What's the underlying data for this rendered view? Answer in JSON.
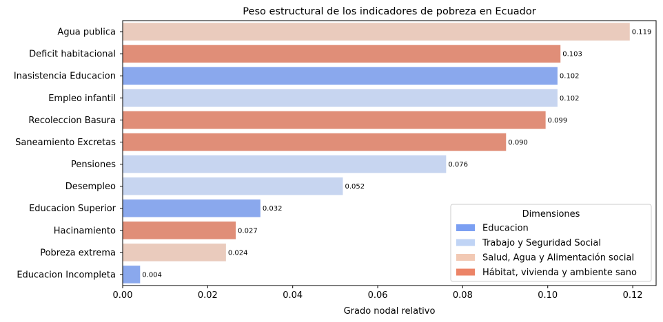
{
  "chart_data": {
    "type": "bar",
    "orientation": "horizontal",
    "title": "Peso estructural de los indicadores de pobreza en Ecuador",
    "xlabel": "Grado nodal relativo",
    "ylabel": "",
    "xlim": [
      0,
      0.1255
    ],
    "xticks": [
      0.0,
      0.02,
      0.04,
      0.06,
      0.08,
      0.1,
      0.12
    ],
    "xtick_labels": [
      "0.00",
      "0.02",
      "0.04",
      "0.06",
      "0.08",
      "0.10",
      "0.12"
    ],
    "grid": false,
    "legend": {
      "title": "Dimensiones",
      "placement": "lower-right",
      "entries": [
        {
          "name": "Educacion",
          "color": "#7b9ff2"
        },
        {
          "name": "Trabajo y Seguridad Social",
          "color": "#c0d4f5"
        },
        {
          "name": "Salud, Agua y Alimentación social",
          "color": "#f2c9b4"
        },
        {
          "name": "Hábitat, vivienda y ambiente sano",
          "color": "#ec8467"
        }
      ]
    },
    "bars": [
      {
        "label": "Agua publica",
        "value": 0.1193,
        "value_label": "0.119",
        "dimension": "Salud, Agua y Alimentación social",
        "color": "#eacbbd"
      },
      {
        "label": "Deficit habitacional",
        "value": 0.103,
        "value_label": "0.103",
        "dimension": "Hábitat, vivienda y ambiente sano",
        "color": "#e08e78"
      },
      {
        "label": "Inasistencia Educacion",
        "value": 0.1023,
        "value_label": "0.102",
        "dimension": "Educacion",
        "color": "#8aa8ed"
      },
      {
        "label": "Empleo infantil",
        "value": 0.1023,
        "value_label": "0.102",
        "dimension": "Trabajo y Seguridad Social",
        "color": "#c7d5f0"
      },
      {
        "label": "Recoleccion Basura",
        "value": 0.0995,
        "value_label": "0.099",
        "dimension": "Hábitat, vivienda y ambiente sano",
        "color": "#e08e78"
      },
      {
        "label": "Saneamiento Excretas",
        "value": 0.0902,
        "value_label": "0.090",
        "dimension": "Hábitat, vivienda y ambiente sano",
        "color": "#e08e78"
      },
      {
        "label": "Pensiones",
        "value": 0.0761,
        "value_label": "0.076",
        "dimension": "Trabajo y Seguridad Social",
        "color": "#c7d5f0"
      },
      {
        "label": "Desempleo",
        "value": 0.0518,
        "value_label": "0.052",
        "dimension": "Trabajo y Seguridad Social",
        "color": "#c7d5f0"
      },
      {
        "label": "Educacion Superior",
        "value": 0.0324,
        "value_label": "0.032",
        "dimension": "Educacion",
        "color": "#8aa8ed"
      },
      {
        "label": "Hacinamiento",
        "value": 0.0266,
        "value_label": "0.027",
        "dimension": "Hábitat, vivienda y ambiente sano",
        "color": "#e08e78"
      },
      {
        "label": "Pobreza extrema",
        "value": 0.0243,
        "value_label": "0.024",
        "dimension": "Salud, Agua y Alimentación social",
        "color": "#eacbbd"
      },
      {
        "label": "Educacion Incompleta",
        "value": 0.0041,
        "value_label": "0.004",
        "dimension": "Educacion",
        "color": "#8aa8ed"
      }
    ]
  }
}
